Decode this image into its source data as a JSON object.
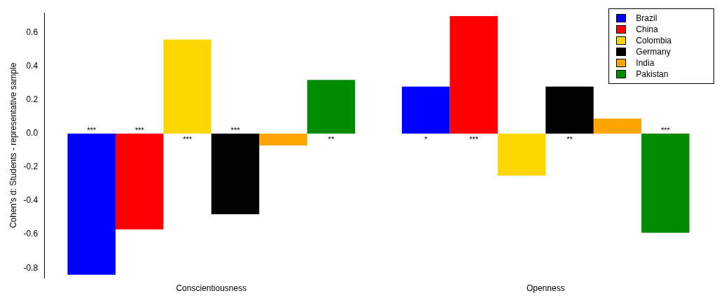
{
  "chart_data": {
    "type": "bar",
    "ylabel": "Cohen's d: Students - representative sample",
    "categories": [
      "Conscientiousness",
      "Openness"
    ],
    "series": [
      {
        "name": "Brazil",
        "color": "#0000ff",
        "values": [
          -0.84,
          0.28
        ],
        "value_labels": [
          "***",
          "*"
        ]
      },
      {
        "name": "China",
        "color": "#ff0000",
        "values": [
          -0.57,
          0.7
        ],
        "value_labels": [
          "***",
          "***"
        ]
      },
      {
        "name": "Colombia",
        "color": "#ffd700",
        "values": [
          0.56,
          -0.25
        ],
        "value_labels": [
          "***",
          null
        ]
      },
      {
        "name": "Germany",
        "color": "#000000",
        "values": [
          -0.48,
          0.28
        ],
        "value_labels": [
          "***",
          "**"
        ]
      },
      {
        "name": "India",
        "color": "#ffa500",
        "values": [
          -0.07,
          0.09
        ],
        "value_labels": [
          null,
          null
        ]
      },
      {
        "name": "Pakistan",
        "color": "#008b00",
        "values": [
          0.32,
          -0.59
        ],
        "value_labels": [
          "**",
          "***"
        ]
      }
    ],
    "ylim": [
      -0.86,
      0.72
    ],
    "yticks": [
      {
        "value": -0.8,
        "label": "-0.8"
      },
      {
        "value": -0.6,
        "label": "-0.6"
      },
      {
        "value": -0.4,
        "label": "-0.4"
      },
      {
        "value": -0.2,
        "label": "-0.2"
      },
      {
        "value": 0,
        "label": "0.0"
      },
      {
        "value": 0.2,
        "label": "0.2"
      },
      {
        "value": 0.4,
        "label": "0.4"
      },
      {
        "value": 0.6,
        "label": "0.6"
      }
    ],
    "grid": false,
    "legend": "top right"
  }
}
